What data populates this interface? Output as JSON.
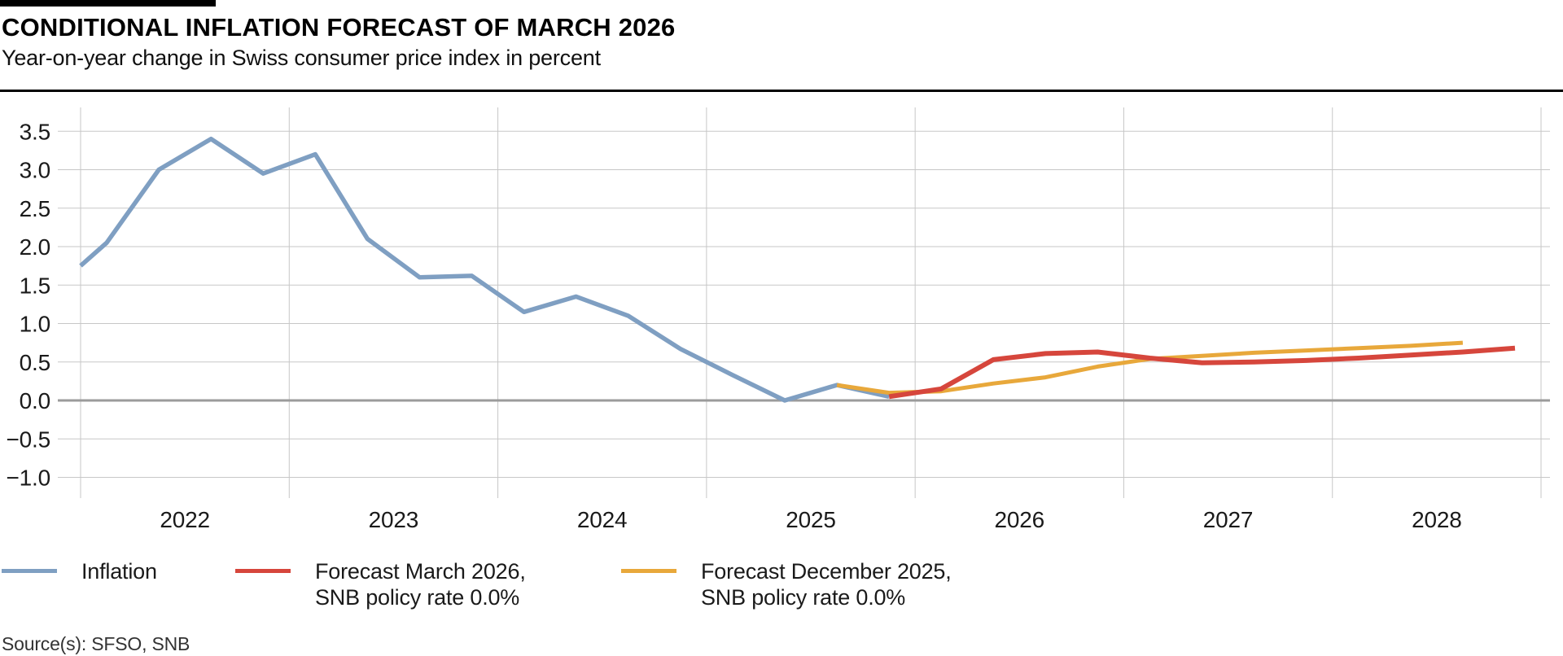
{
  "header": {
    "title": "CONDITIONAL INFLATION FORECAST OF MARCH 2026",
    "subtitle": "Year-on-year change in Swiss consumer price index in percent"
  },
  "footer": {
    "source": "Source(s): SFSO, SNB"
  },
  "colors": {
    "inflation": "#7f9fc2",
    "forecast_march": "#d6463c",
    "forecast_december": "#e8a83b",
    "grid": "#c7c7c7",
    "zero_line": "#9b9b9b",
    "text": "#1a1a1a",
    "accent": "#000000"
  },
  "legend": {
    "items": [
      {
        "line1": "Inflation",
        "line2": "",
        "color": "#7f9fc2"
      },
      {
        "line1": "Forecast March 2026,",
        "line2": "SNB policy rate 0.0%",
        "color": "#d6463c"
      },
      {
        "line1": "Forecast December 2025,",
        "line2": "SNB policy rate 0.0%",
        "color": "#e8a83b"
      }
    ]
  },
  "chart_data": {
    "type": "line",
    "title": "CONDITIONAL INFLATION FORECAST OF MARCH 2026",
    "subtitle": "Year-on-year change in Swiss consumer price index in percent",
    "xlabel": "",
    "ylabel": "",
    "xlim": [
      2021.89,
      2029.04
    ],
    "ylim": [
      -1.25,
      3.8
    ],
    "grid": true,
    "legend_position": "bottom",
    "yticks": [
      {
        "value": 3.5,
        "label": "3.5"
      },
      {
        "value": 3.0,
        "label": "3.0"
      },
      {
        "value": 2.5,
        "label": "2.5"
      },
      {
        "value": 2.0,
        "label": "2.0"
      },
      {
        "value": 1.5,
        "label": "1.5"
      },
      {
        "value": 1.0,
        "label": "1.0"
      },
      {
        "value": 0.5,
        "label": "0.5"
      },
      {
        "value": 0.0,
        "label": "0.0"
      },
      {
        "value": -0.5,
        "label": "−0.5"
      },
      {
        "value": -1.0,
        "label": "−1.0"
      }
    ],
    "xticks": [
      {
        "value": 2022,
        "label": "2022"
      },
      {
        "value": 2023,
        "label": "2023"
      },
      {
        "value": 2024,
        "label": "2024"
      },
      {
        "value": 2025,
        "label": "2025"
      },
      {
        "value": 2026,
        "label": "2026"
      },
      {
        "value": 2027,
        "label": "2027"
      },
      {
        "value": 2028,
        "label": "2028"
      }
    ],
    "x_gridlines": [
      2022,
      2023,
      2024,
      2025,
      2026,
      2027,
      2028,
      2029
    ],
    "series": [
      {
        "slug": "inflation",
        "name": "Inflation",
        "color": "#7f9fc2",
        "stroke_width": 5.5,
        "points": [
          [
            2022.0,
            1.75
          ],
          [
            2022.125,
            2.05
          ],
          [
            2022.375,
            3.0
          ],
          [
            2022.625,
            3.4
          ],
          [
            2022.875,
            2.95
          ],
          [
            2023.125,
            3.2
          ],
          [
            2023.375,
            2.1
          ],
          [
            2023.625,
            1.6
          ],
          [
            2023.875,
            1.62
          ],
          [
            2024.125,
            1.15
          ],
          [
            2024.375,
            1.35
          ],
          [
            2024.625,
            1.1
          ],
          [
            2024.875,
            0.67
          ],
          [
            2025.125,
            0.33
          ],
          [
            2025.375,
            0.0
          ],
          [
            2025.625,
            0.2
          ],
          [
            2025.875,
            0.05
          ]
        ]
      },
      {
        "slug": "forecast-december-2025",
        "name": "Forecast December 2025, SNB policy rate 0.0%",
        "color": "#e8a83b",
        "stroke_width": 5,
        "points": [
          [
            2025.625,
            0.2
          ],
          [
            2025.875,
            0.1
          ],
          [
            2026.125,
            0.12
          ],
          [
            2026.375,
            0.22
          ],
          [
            2026.625,
            0.3
          ],
          [
            2026.875,
            0.44
          ],
          [
            2027.125,
            0.54
          ],
          [
            2027.375,
            0.58
          ],
          [
            2027.625,
            0.62
          ],
          [
            2027.875,
            0.65
          ],
          [
            2028.125,
            0.68
          ],
          [
            2028.375,
            0.71
          ],
          [
            2028.625,
            0.75
          ]
        ]
      },
      {
        "slug": "forecast-march-2026",
        "name": "Forecast March 2026, SNB policy rate 0.0%",
        "color": "#d6463c",
        "stroke_width": 6,
        "points": [
          [
            2025.875,
            0.05
          ],
          [
            2026.125,
            0.15
          ],
          [
            2026.375,
            0.53
          ],
          [
            2026.625,
            0.61
          ],
          [
            2026.875,
            0.63
          ],
          [
            2027.125,
            0.55
          ],
          [
            2027.375,
            0.49
          ],
          [
            2027.625,
            0.5
          ],
          [
            2027.875,
            0.52
          ],
          [
            2028.125,
            0.55
          ],
          [
            2028.375,
            0.59
          ],
          [
            2028.625,
            0.63
          ],
          [
            2028.875,
            0.68
          ]
        ]
      }
    ]
  }
}
